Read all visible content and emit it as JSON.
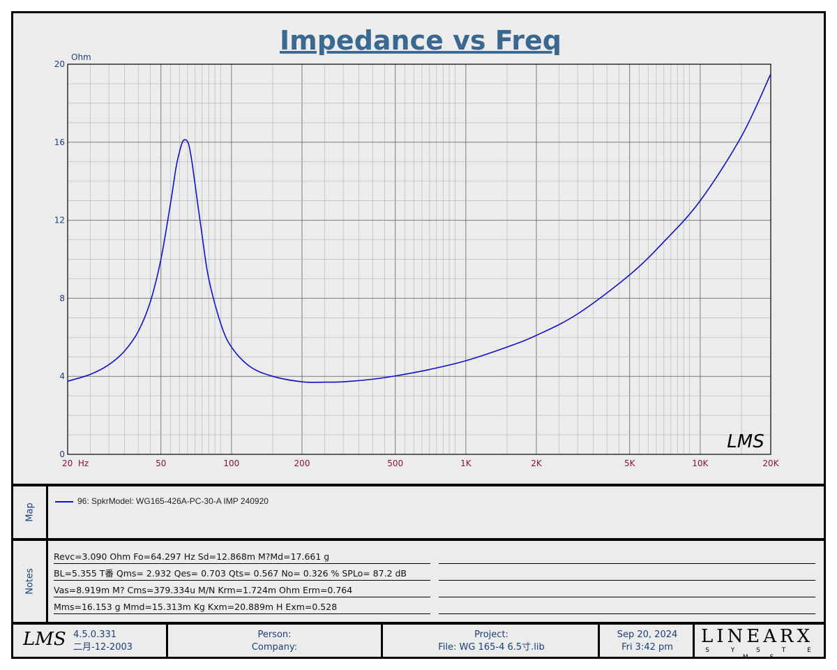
{
  "chart_data": {
    "type": "line",
    "title": "Impedance vs Freq",
    "ylabel": "Ohm",
    "x_scale": "log",
    "xlim": [
      20,
      20000
    ],
    "ylim": [
      0,
      20
    ],
    "y_ticks": [
      "0",
      "4",
      "8",
      "12",
      "16",
      "20"
    ],
    "y_tick_values": [
      0,
      4,
      8,
      12,
      16,
      20
    ],
    "x_ticks": [
      "20  Hz",
      "50",
      "100",
      "200",
      "500",
      "1K",
      "2K",
      "5K",
      "10K",
      "20K"
    ],
    "x_tick_values": [
      20,
      50,
      100,
      200,
      500,
      1000,
      2000,
      5000,
      10000,
      20000
    ],
    "grid": true,
    "series": [
      {
        "name": "96: SpkrModel: WG165-426A-PC-30-A IMP 240920",
        "color": "#1010c8",
        "x": [
          20,
          25,
          30,
          35,
          40,
          45,
          50,
          55,
          58,
          60,
          62,
          64.3,
          66,
          68,
          70,
          75,
          80,
          90,
          100,
          120,
          150,
          200,
          250,
          300,
          400,
          500,
          700,
          1000,
          1500,
          2000,
          3000,
          5000,
          7000,
          10000,
          15000,
          20000
        ],
        "y": [
          3.75,
          4.1,
          4.6,
          5.3,
          6.3,
          7.8,
          10.0,
          12.9,
          14.7,
          15.5,
          16.05,
          16.1,
          15.8,
          14.9,
          13.8,
          11.2,
          9.0,
          6.7,
          5.5,
          4.5,
          4.0,
          3.72,
          3.7,
          3.72,
          3.85,
          4.02,
          4.35,
          4.8,
          5.5,
          6.1,
          7.2,
          9.2,
          10.9,
          13.0,
          16.3,
          19.5
        ]
      }
    ]
  },
  "logo_text": "LMS",
  "map": {
    "label": "Map",
    "entry": "96: SpkrModel: WG165-426A-PC-30-A IMP 240920"
  },
  "notes": {
    "label": "Notes",
    "lines": [
      "Revc=3.090 Ohm  Fo=64.297 Hz  Sd=12.868m M?Md=17.661 g",
      "BL=5.355 T番  Qms= 2.932  Qes= 0.703  Qts= 0.567  No= 0.326 %  SPLo= 87.2 dB",
      "Vas=8.919m M? Cms=379.334u M/N  Krm=1.724m Ohm  Erm=0.764",
      "Mms=16.153 g  Mmd=15.313m Kg  Kxm=20.889m H  Exm=0.528"
    ]
  },
  "footer": {
    "logo": "LMS",
    "version": "4.5.0.331",
    "version_date": "二月-12-2003",
    "person_label": "Person:",
    "company_label": "Company:",
    "project_label": "Project:",
    "file_label": "File: WG 165-4 6.5寸.lib",
    "date": "Sep 20, 2024",
    "time": "Fri  3:42 pm",
    "brand": "LINEARX",
    "brand_sub": "S Y S T E M S"
  }
}
